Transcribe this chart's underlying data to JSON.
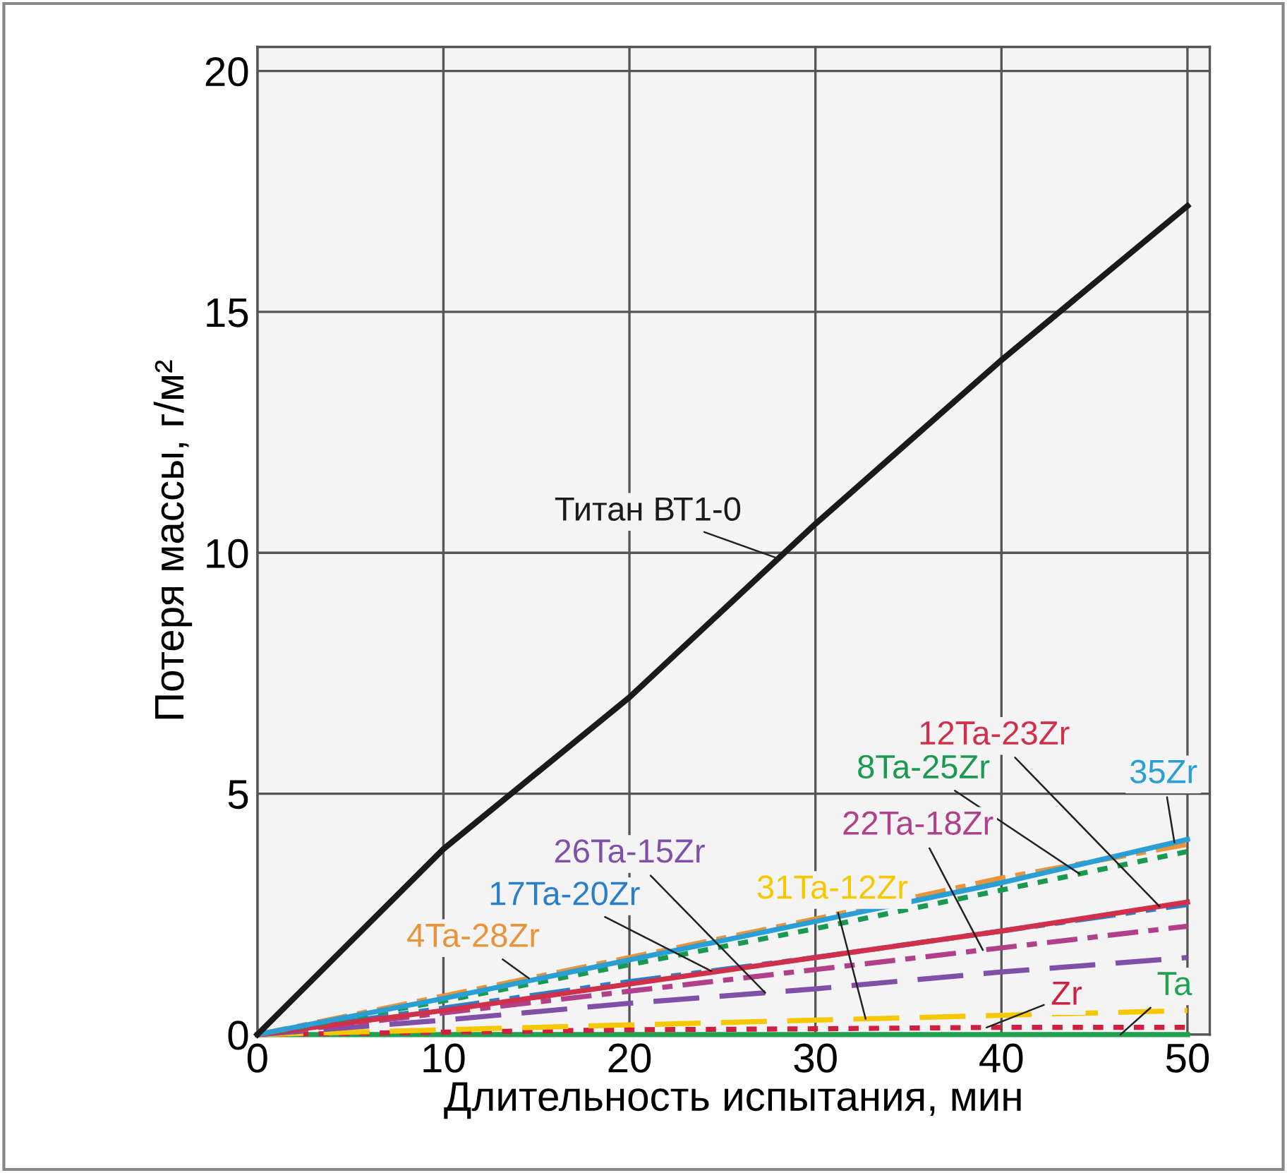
{
  "chart_data": {
    "type": "line",
    "xlabel": "Длительность испытания, мин",
    "ylabel": "Потеря массы, г/м²",
    "xlim": [
      0,
      51.2
    ],
    "ylim": [
      0,
      20.5
    ],
    "xticks": [
      0,
      10,
      20,
      30,
      40,
      50
    ],
    "yticks": [
      0,
      5,
      10,
      15,
      20
    ],
    "grid": true,
    "legend": false,
    "marker": "none",
    "x": [
      0,
      10,
      20,
      30,
      40,
      50
    ],
    "series": [
      {
        "name": "Титан ВТ1-0",
        "color": "#1a1a1a",
        "line_style": "solid",
        "values": [
          0,
          3.85,
          7.0,
          10.6,
          14.0,
          17.2
        ]
      },
      {
        "name": "35Zr",
        "color": "#2a9fd6",
        "line_style": "solid",
        "values": [
          0,
          0.75,
          1.55,
          2.35,
          3.15,
          4.05
        ]
      },
      {
        "name": "4Ta-28Zr",
        "color": "#e8943a",
        "line_style": "dashdot",
        "values": [
          0,
          0.8,
          1.6,
          2.4,
          3.25,
          3.95
        ]
      },
      {
        "name": "8Ta-25Zr",
        "color": "#1a9a50",
        "line_style": "dotted",
        "values": [
          0,
          0.7,
          1.45,
          2.2,
          3.0,
          3.8
        ]
      },
      {
        "name": "12Ta-23Zr",
        "color": "#d0304a",
        "line_style": "solid",
        "values": [
          0,
          0.5,
          1.05,
          1.6,
          2.15,
          2.75
        ]
      },
      {
        "name": "17Ta-20Zr",
        "color": "#2a80c8",
        "line_style": "dashdotdot",
        "values": [
          0,
          0.55,
          1.1,
          1.6,
          2.15,
          2.7
        ]
      },
      {
        "name": "22Ta-18Zr",
        "color": "#b0408a",
        "line_style": "dashdot",
        "values": [
          0,
          0.45,
          0.9,
          1.35,
          1.8,
          2.25
        ]
      },
      {
        "name": "26Ta-15Zr",
        "color": "#8050a8",
        "line_style": "dashed",
        "values": [
          0,
          0.3,
          0.65,
          0.95,
          1.3,
          1.6
        ]
      },
      {
        "name": "31Ta-12Zr",
        "color": "#f5c800",
        "line_style": "dashed",
        "values": [
          0,
          0.1,
          0.2,
          0.3,
          0.4,
          0.5
        ]
      },
      {
        "name": "Zr",
        "color": "#d02040",
        "line_style": "dotted",
        "values": [
          0,
          0.05,
          0.1,
          0.12,
          0.15,
          0.15
        ]
      },
      {
        "name": "Ta",
        "color": "#20a050",
        "line_style": "solid",
        "values": [
          0,
          0,
          0,
          0,
          0,
          0
        ]
      }
    ]
  }
}
